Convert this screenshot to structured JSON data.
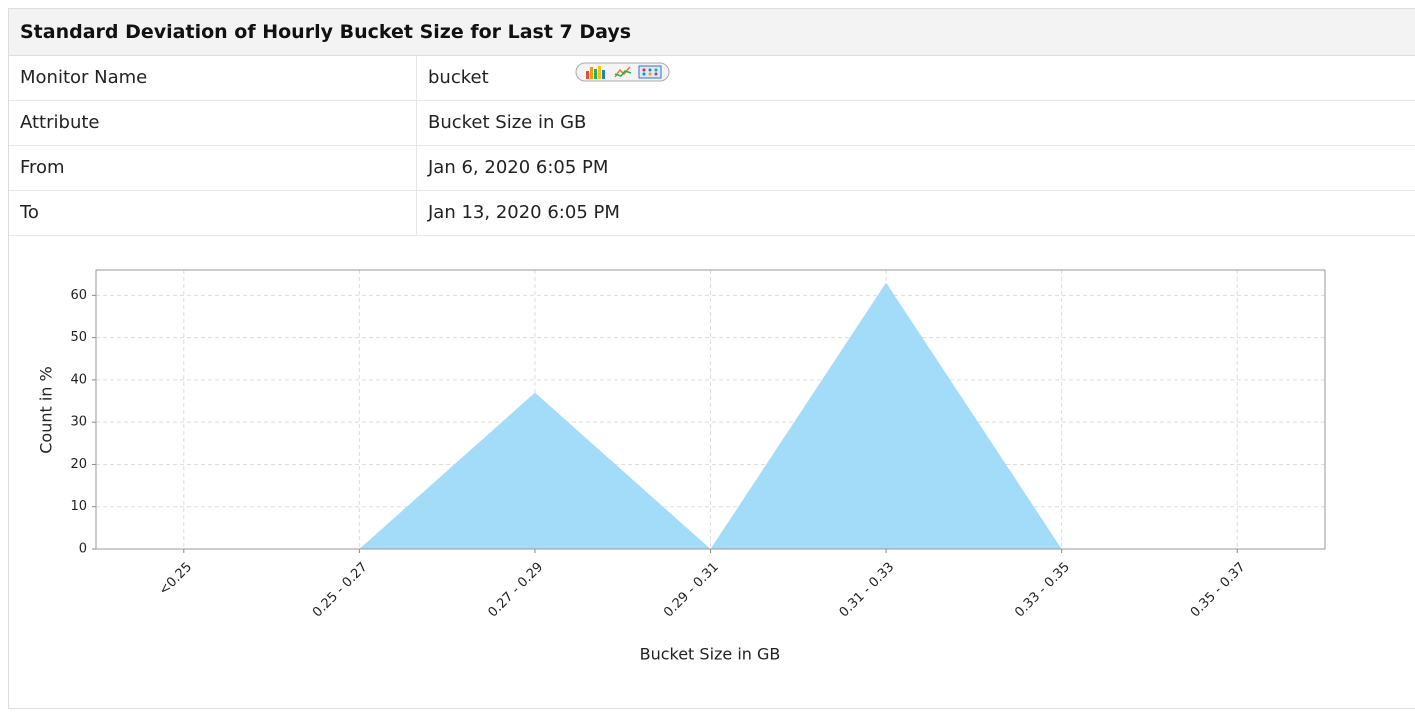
{
  "header": {
    "title": "Standard Deviation of Hourly Bucket Size for Last 7 Days"
  },
  "table": {
    "rows": [
      [
        "Monitor Name",
        "bucket"
      ],
      [
        "Attribute",
        "Bucket Size in GB"
      ],
      [
        "From",
        "Jan 6, 2020 6:05 PM"
      ],
      [
        "To",
        "Jan 13, 2020 6:05 PM"
      ]
    ]
  },
  "chart_data": {
    "type": "area",
    "x_label": "Bucket Size in GB",
    "y_label": "Count in %",
    "categories": [
      "<0.25",
      "0.25 - 0.27",
      "0.27 - 0.29",
      "0.29 - 0.31",
      "0.31 - 0.33",
      "0.33 - 0.35",
      "0.35 - 0.37"
    ],
    "values": [
      0,
      0,
      37,
      0,
      63,
      0,
      0
    ],
    "color": "#a3dcf8",
    "ylim": [
      0,
      66
    ],
    "yticks": [
      0,
      10,
      20,
      30,
      40,
      50,
      60
    ],
    "grid": true
  }
}
